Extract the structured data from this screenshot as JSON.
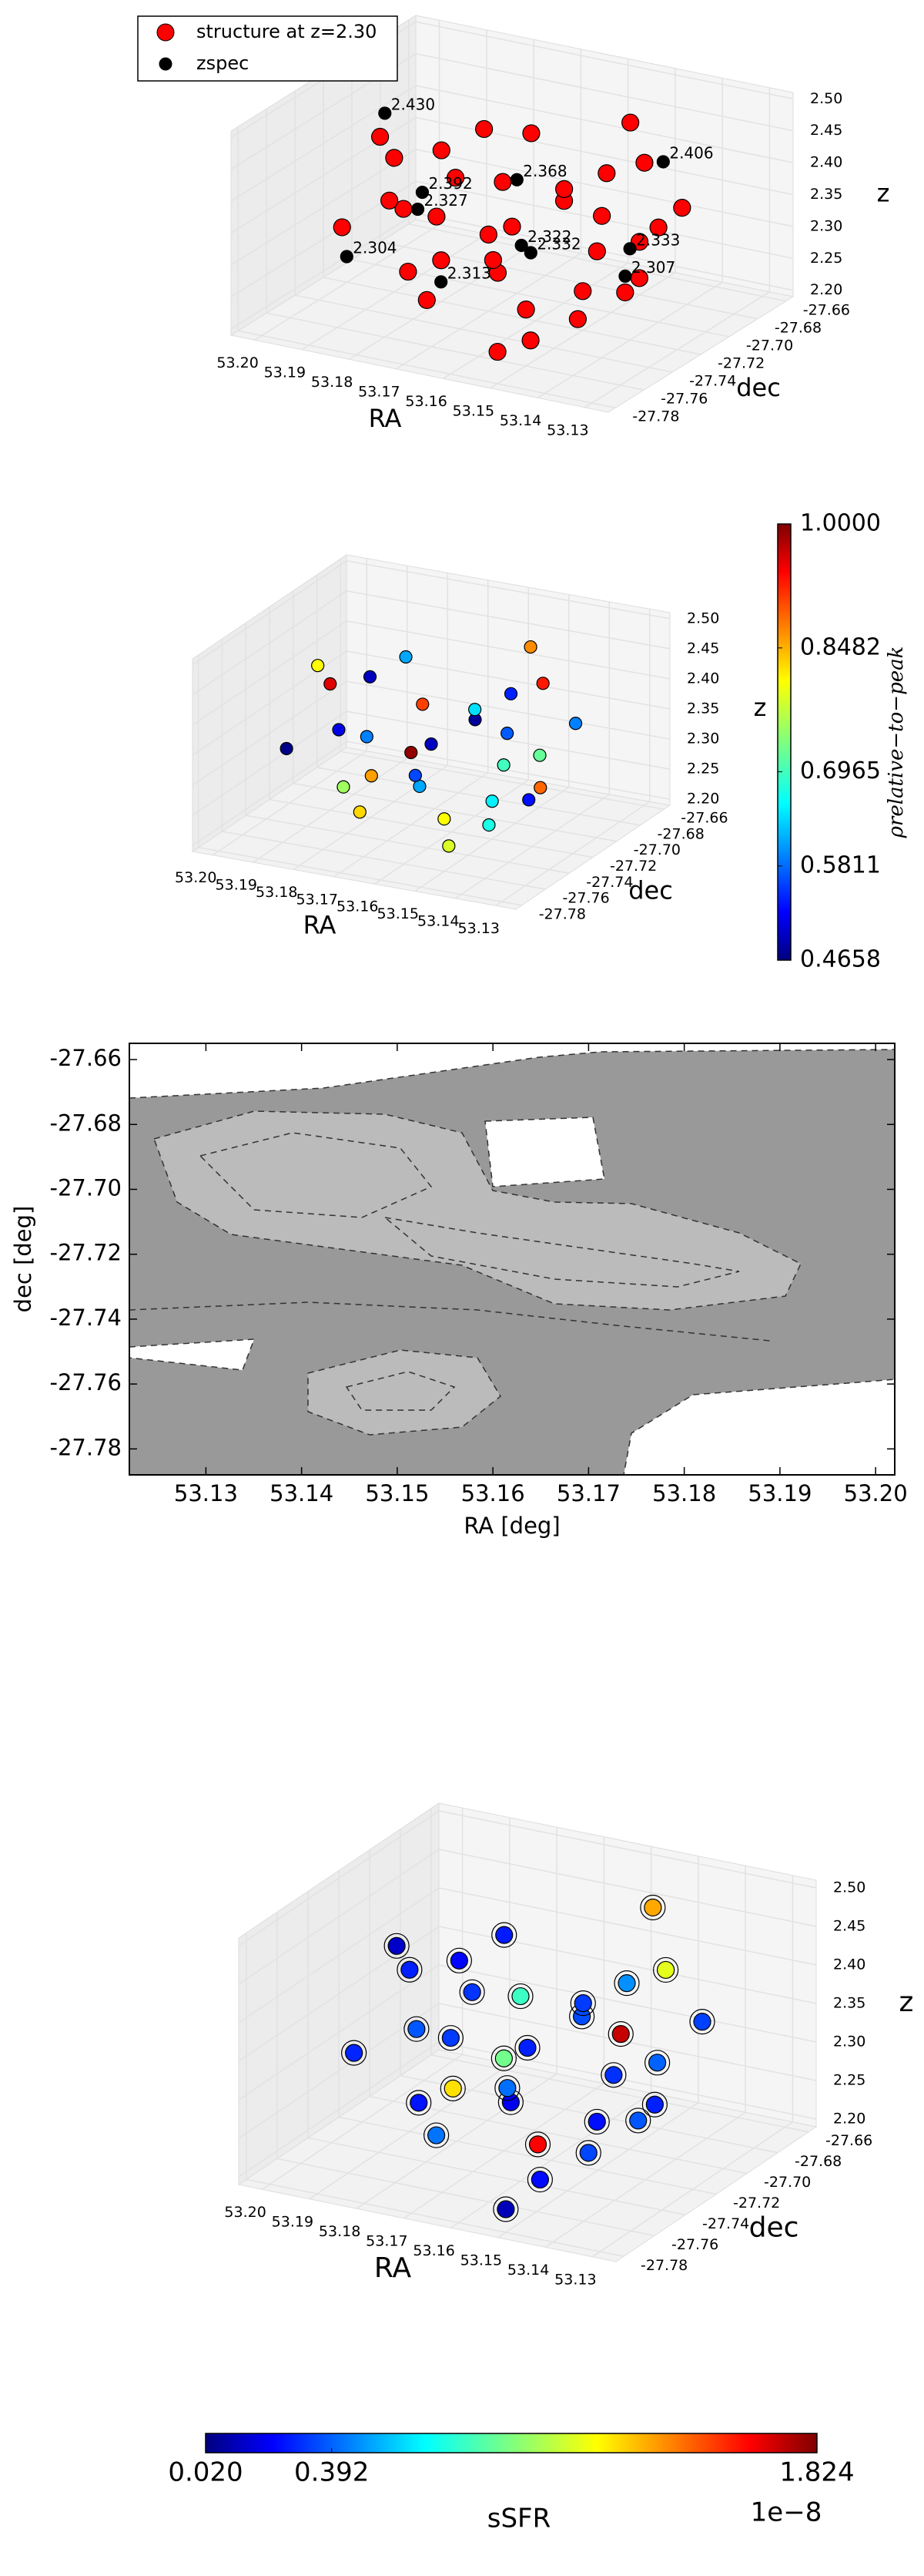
{
  "chart_data": [
    {
      "type": "scatter3d",
      "xlabel": "RA",
      "ylabel": "dec",
      "zlabel": "z",
      "legend_loc": "upper left",
      "xlim": [
        53.125,
        53.205
      ],
      "ylim": [
        -27.785,
        -27.655
      ],
      "zlim": [
        2.19,
        2.51
      ],
      "xticks": [
        53.13,
        53.14,
        53.15,
        53.16,
        53.17,
        53.18,
        53.19,
        {
          "value": 53.2,
          "label": "53.20"
        }
      ],
      "yticks": [
        -27.78,
        -27.76,
        -27.74,
        -27.72,
        {
          "value": -27.7,
          "label": "-27.70"
        },
        -27.68,
        -27.66
      ],
      "zticks": [
        {
          "value": 2.2,
          "label": "2.20"
        },
        2.25,
        {
          "value": 2.3,
          "label": "2.30"
        },
        2.35,
        {
          "value": 2.4,
          "label": "2.40"
        },
        2.45,
        {
          "value": 2.5,
          "label": "2.50"
        }
      ],
      "series": [
        {
          "name": "structure at z=2.30",
          "color": "#ff0000",
          "x": [
            53.196,
            53.19,
            53.186,
            53.182,
            53.178,
            53.175,
            53.171,
            53.168,
            53.165,
            53.162,
            53.16,
            53.157,
            53.155,
            53.152,
            53.15,
            53.147,
            53.144,
            53.141,
            53.138,
            53.135,
            53.192,
            53.183,
            53.173,
            53.163,
            53.153,
            53.146,
            53.139,
            53.17,
            53.158,
            53.166,
            53.18,
            53.15,
            53.143,
            53.188,
            53.176
          ],
          "y": [
            -27.71,
            -27.72,
            -27.7,
            -27.74,
            -27.73,
            -27.76,
            -27.75,
            -27.77,
            -27.72,
            -27.74,
            -27.7,
            -27.68,
            -27.69,
            -27.67,
            -27.71,
            -27.73,
            -27.7,
            -27.68,
            -27.72,
            -27.74,
            -27.75,
            -27.68,
            -27.7,
            -27.69,
            -27.75,
            -27.77,
            -27.76,
            -27.72,
            -27.66,
            -27.73,
            -27.71,
            -27.78,
            -27.69,
            -27.73,
            -27.67
          ],
          "z": [
            2.41,
            2.4,
            2.39,
            2.36,
            2.34,
            2.3,
            2.31,
            2.28,
            2.33,
            2.29,
            2.35,
            2.37,
            2.32,
            2.38,
            2.3,
            2.27,
            2.31,
            2.34,
            2.29,
            2.3,
            2.33,
            2.4,
            2.36,
            2.35,
            2.26,
            2.25,
            2.28,
            2.31,
            2.42,
            2.29,
            2.37,
            2.24,
            2.32,
            2.35,
            2.39
          ]
        },
        {
          "name": "zspec",
          "color": "#000000",
          "x": [
            53.198,
            53.185,
            53.17,
            53.178,
            53.188,
            53.16,
            53.155,
            53.165,
            53.145,
            53.14,
            53.138
          ],
          "y": [
            -27.7,
            -27.72,
            -27.7,
            -27.74,
            -27.76,
            -27.73,
            -27.74,
            -27.77,
            -27.68,
            -27.72,
            -27.73
          ],
          "z": [
            2.43,
            2.327,
            2.368,
            2.392,
            2.304,
            2.322,
            2.332,
            2.313,
            2.406,
            2.333,
            2.307
          ],
          "value_labels": [
            "2.430",
            "2.327",
            "2.368",
            "2.392",
            "2.304",
            "2.322",
            "2.332",
            "2.313",
            "2.406",
            "2.333",
            "2.307"
          ]
        }
      ]
    },
    {
      "type": "scatter3d",
      "xlabel": "RA",
      "ylabel": "dec",
      "zlabel": "z",
      "colormap": "jet",
      "xlim": [
        53.125,
        53.205
      ],
      "ylim": [
        -27.785,
        -27.655
      ],
      "zlim": [
        2.19,
        2.51
      ],
      "xticks": [
        53.13,
        53.14,
        53.15,
        53.16,
        53.17,
        53.18,
        53.19,
        {
          "value": 53.2,
          "label": "53.20"
        }
      ],
      "yticks": [
        -27.78,
        -27.76,
        -27.74,
        -27.72,
        {
          "value": -27.7,
          "label": "-27.70"
        },
        -27.68,
        -27.66
      ],
      "zticks": [
        {
          "value": 2.2,
          "label": "2.20"
        },
        2.25,
        {
          "value": 2.3,
          "label": "2.30"
        },
        2.35,
        {
          "value": 2.4,
          "label": "2.40"
        },
        2.45,
        {
          "value": 2.5,
          "label": "2.50"
        }
      ],
      "clim": [
        0.4658,
        1
      ],
      "colorbar_ticks": [
        0.4658,
        0.5811,
        0.6965,
        0.8482,
        {
          "value": 1,
          "label": "1.0000"
        }
      ],
      "colorbar_label": "ρrelative−to−peak",
      "series": [
        {
          "x": [
            53.196,
            53.19,
            53.186,
            53.182,
            53.178,
            53.175,
            53.171,
            53.168,
            53.165,
            53.162,
            53.16,
            53.157,
            53.155,
            53.152,
            53.15,
            53.147,
            53.144,
            53.141,
            53.138,
            53.135,
            53.192,
            53.183,
            53.173,
            53.163,
            53.153,
            53.146,
            53.139,
            53.17,
            53.158,
            53.166
          ],
          "y": [
            -27.71,
            -27.72,
            -27.7,
            -27.74,
            -27.73,
            -27.76,
            -27.75,
            -27.77,
            -27.72,
            -27.74,
            -27.7,
            -27.68,
            -27.69,
            -27.67,
            -27.71,
            -27.73,
            -27.7,
            -27.68,
            -27.72,
            -27.74,
            -27.75,
            -27.68,
            -27.7,
            -27.69,
            -27.75,
            -27.77,
            -27.76,
            -27.72,
            -27.66,
            -27.73
          ],
          "z": [
            2.41,
            2.4,
            2.39,
            2.36,
            2.34,
            2.3,
            2.31,
            2.28,
            2.33,
            2.29,
            2.35,
            2.37,
            2.32,
            2.38,
            2.3,
            2.27,
            2.31,
            2.34,
            2.29,
            2.3,
            2.33,
            2.4,
            2.36,
            2.35,
            2.26,
            2.25,
            2.28,
            2.31,
            2.42,
            2.29
          ],
          "c": [
            0.8,
            0.95,
            0.5,
            0.52,
            0.6,
            0.75,
            0.85,
            0.82,
            0.5,
            0.62,
            0.48,
            0.55,
            0.58,
            0.92,
            0.7,
            0.66,
            0.72,
            0.6,
            0.88,
            0.54,
            0.47,
            0.62,
            0.9,
            0.65,
            0.8,
            0.78,
            0.68,
            0.99,
            0.86,
            0.57
          ]
        }
      ]
    },
    {
      "type": "contour",
      "xlabel": "RA [deg]",
      "ylabel": "dec [deg]",
      "xlim": [
        53.122,
        53.202
      ],
      "ylim": [
        -27.788,
        -27.655
      ],
      "xticks": [
        53.13,
        53.14,
        53.15,
        53.16,
        53.17,
        53.18,
        53.19,
        {
          "value": 53.2,
          "label": "53.20"
        }
      ],
      "yticks": [
        -27.78,
        -27.76,
        -27.74,
        -27.72,
        {
          "value": -27.7,
          "label": "-27.70"
        },
        -27.68,
        -27.66
      ]
    },
    {
      "type": "scatter3d",
      "xlabel": "RA",
      "ylabel": "dec",
      "zlabel": "z",
      "colormap": "jet",
      "xlim": [
        53.125,
        53.205
      ],
      "ylim": [
        -27.785,
        -27.655
      ],
      "zlim": [
        2.19,
        2.51
      ],
      "xticks": [
        53.13,
        53.14,
        53.15,
        53.16,
        53.17,
        53.18,
        53.19,
        {
          "value": 53.2,
          "label": "53.20"
        }
      ],
      "yticks": [
        -27.78,
        -27.76,
        -27.74,
        -27.72,
        {
          "value": -27.7,
          "label": "-27.70"
        },
        -27.68,
        -27.66
      ],
      "zticks": [
        {
          "value": 2.2,
          "label": "2.20"
        },
        2.25,
        {
          "value": 2.3,
          "label": "2.30"
        },
        2.35,
        {
          "value": 2.4,
          "label": "2.40"
        },
        2.45,
        {
          "value": 2.5,
          "label": "2.50"
        }
      ],
      "clim": [
        0.02,
        1.824
      ],
      "colorbar_ticks": [
        {
          "value": 0.02,
          "label": "0.020"
        },
        0.392,
        1.824
      ],
      "colorbar_label": "sSFR",
      "colorbar_offset": "1e−8",
      "series": [
        {
          "x": [
            53.196,
            53.19,
            53.186,
            53.182,
            53.178,
            53.175,
            53.171,
            53.168,
            53.165,
            53.162,
            53.16,
            53.157,
            53.155,
            53.152,
            53.15,
            53.147,
            53.144,
            53.141,
            53.138,
            53.135,
            53.192,
            53.183,
            53.173,
            53.163,
            53.153,
            53.146,
            53.139,
            53.17,
            53.158,
            53.166,
            53.18,
            53.15
          ],
          "y": [
            -27.71,
            -27.72,
            -27.7,
            -27.74,
            -27.73,
            -27.76,
            -27.75,
            -27.77,
            -27.72,
            -27.74,
            -27.7,
            -27.68,
            -27.69,
            -27.67,
            -27.71,
            -27.73,
            -27.7,
            -27.68,
            -27.72,
            -27.74,
            -27.75,
            -27.68,
            -27.7,
            -27.69,
            -27.75,
            -27.77,
            -27.76,
            -27.72,
            -27.66,
            -27.73,
            -27.71,
            -27.78
          ],
          "z": [
            2.41,
            2.4,
            2.39,
            2.36,
            2.34,
            2.3,
            2.31,
            2.28,
            2.33,
            2.29,
            2.35,
            2.37,
            2.32,
            2.38,
            2.3,
            2.27,
            2.31,
            2.34,
            2.29,
            2.3,
            2.33,
            2.4,
            2.36,
            2.35,
            2.26,
            2.25,
            2.28,
            2.31,
            2.44,
            2.29,
            2.37,
            2.22
          ],
          "c": [
            0.15,
            0.3,
            0.25,
            0.4,
            0.35,
            0.28,
            1.2,
            0.45,
            0.3,
            0.22,
            0.38,
            0.5,
            1.7,
            1.1,
            0.33,
            0.27,
            0.42,
            0.36,
            0.3,
            0.4,
            0.31,
            0.29,
            0.8,
            0.35,
            1.6,
            0.26,
            0.37,
            0.9,
            1.3,
            0.44,
            0.34,
            0.12
          ]
        }
      ]
    }
  ]
}
